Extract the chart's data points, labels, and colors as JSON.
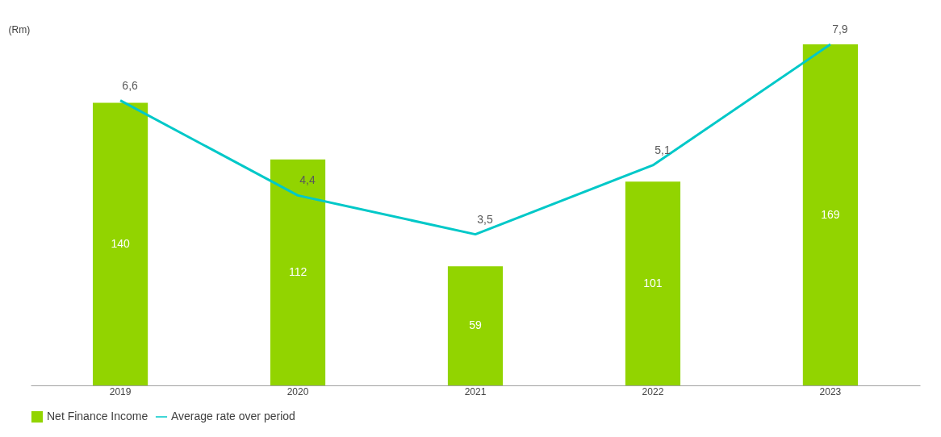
{
  "chart_data": {
    "type": "bar",
    "ylabel": "(Rm)",
    "categories": [
      "2019",
      "2020",
      "2021",
      "2022",
      "2023"
    ],
    "series": [
      {
        "name": "Net Finance Income",
        "color": "#92d400",
        "values": [
          140,
          112,
          59,
          101,
          169
        ],
        "data_labels": true
      },
      {
        "name": "Average rate over period",
        "type": "line",
        "axis": "y2",
        "color": "#00c8c8",
        "values": [
          6.6,
          4.4,
          3.5,
          5.1,
          7.9
        ],
        "value_labels": [
          "6,6",
          "4,4",
          "3,5",
          "5,1",
          "7,9"
        ]
      }
    ],
    "legend": "bottom",
    "grid": false,
    "marker": "none"
  }
}
